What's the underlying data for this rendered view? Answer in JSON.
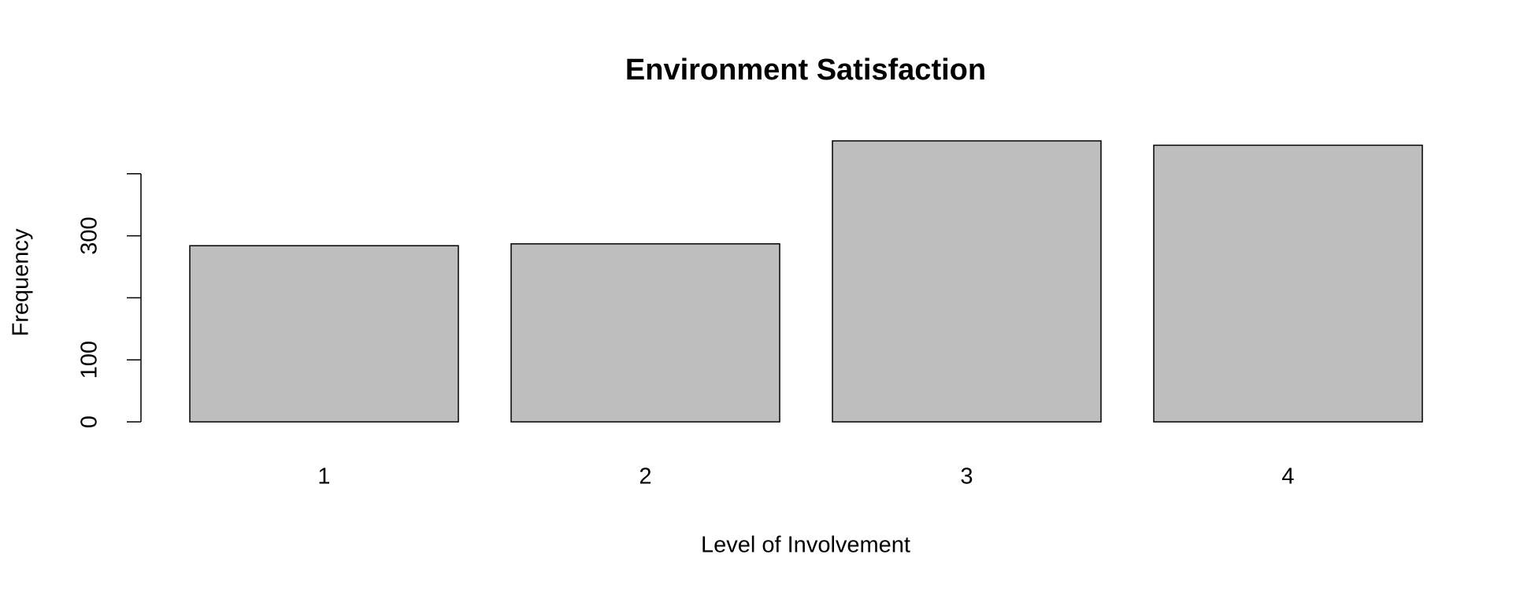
{
  "chart_data": {
    "type": "bar",
    "title": "Environment Satisfaction",
    "x_label": "Level of Involvement",
    "y_label": "Frequency",
    "categories": [
      "1",
      "2",
      "3",
      "4"
    ],
    "values": [
      284,
      287,
      453,
      446
    ],
    "color": "#bebebe",
    "ylim": [
      0,
      453
    ],
    "yticks": [
      0,
      100,
      {
        "value": 200,
        "label": null
      },
      300,
      {
        "value": 400,
        "label": null
      }
    ],
    "grid": false
  }
}
